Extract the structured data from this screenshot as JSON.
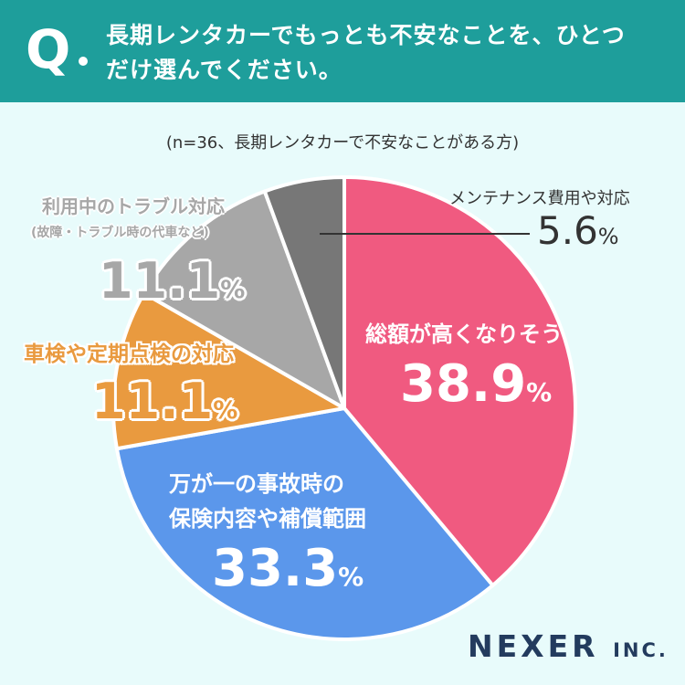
{
  "question": {
    "mark": "Q",
    "line1": "長期レンタカーでもっとも不安なことを、ひとつ",
    "line2": "だけ選んでください。"
  },
  "subtitle": "(n=36、長期レンタカーで不安なことがある方)",
  "chart_data": {
    "type": "pie",
    "start_angle_deg": 0,
    "direction": "clockwise",
    "slices": [
      {
        "label": "総額が高くなりそう",
        "value": 38.9,
        "value_text": "38.9",
        "color": "#f05a80"
      },
      {
        "label_line1": "万が一の事故時の",
        "label_line2": "保険内容や補償範囲",
        "value": 33.3,
        "value_text": "33.3",
        "color": "#5b97eb"
      },
      {
        "label": "車検や定期点検の対応",
        "value": 11.1,
        "value_text": "11.1",
        "color": "#e99a3f"
      },
      {
        "label": "利用中のトラブル対応",
        "sublabel": "(故障・トラブル時の代車など)",
        "value": 11.1,
        "value_text": "11.1",
        "color": "#a7a7a7"
      },
      {
        "label": "メンテナンス費用や対応",
        "value": 5.6,
        "value_text": "5.6",
        "color": "#777777"
      }
    ],
    "unit": "%"
  },
  "logo": {
    "name": "NEXER",
    "suffix": "INC."
  }
}
